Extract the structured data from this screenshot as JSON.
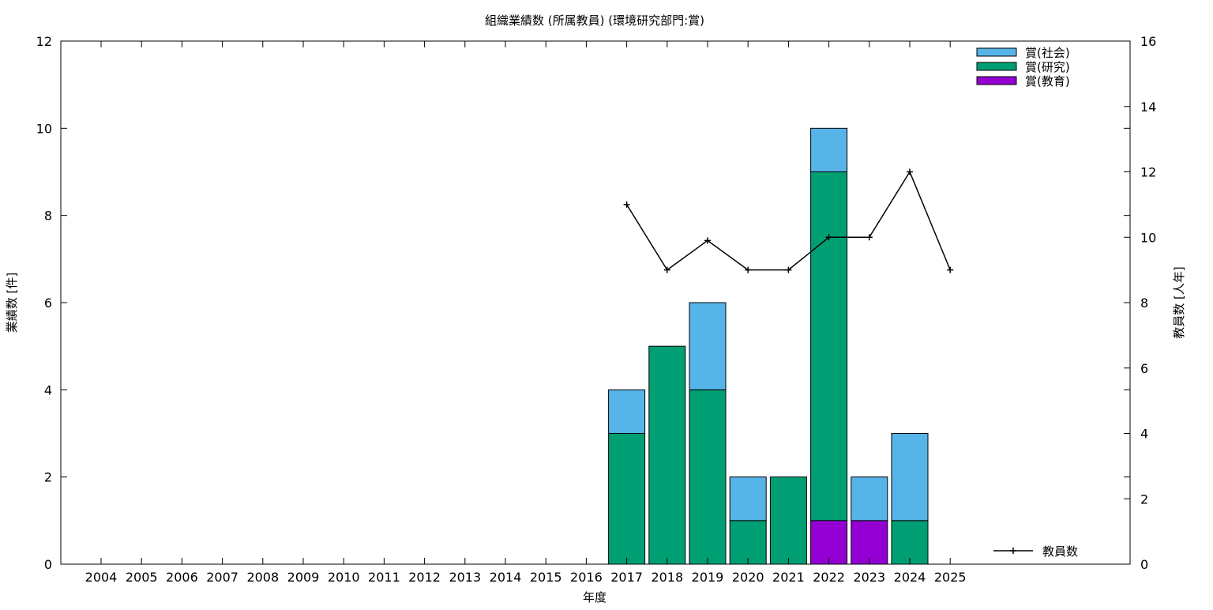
{
  "chart_data": {
    "type": "bar",
    "title": "組織業績数 (所属教員) (環境研究部門:賞)",
    "xlabel": "年度",
    "ylabel": "業績数 [件]",
    "y2label": "教員数 [人年]",
    "categories": [
      "2004",
      "2005",
      "2006",
      "2007",
      "2008",
      "2009",
      "2010",
      "2011",
      "2012",
      "2013",
      "2014",
      "2015",
      "2016",
      "2017",
      "2018",
      "2019",
      "2020",
      "2021",
      "2022",
      "2023",
      "2024",
      "2025"
    ],
    "ylim": [
      0,
      12
    ],
    "yticks": [
      0,
      2,
      4,
      6,
      8,
      10,
      12
    ],
    "y2lim": [
      0,
      16
    ],
    "y2ticks": [
      0,
      2,
      4,
      6,
      8,
      10,
      12,
      14,
      16
    ],
    "stacked": true,
    "series": [
      {
        "name": "賞(教育)",
        "color": "#9400d3",
        "values": [
          0,
          0,
          0,
          0,
          0,
          0,
          0,
          0,
          0,
          0,
          0,
          0,
          0,
          0,
          0,
          0,
          0,
          0,
          1,
          1,
          0,
          0
        ]
      },
      {
        "name": "賞(研究)",
        "color": "#009e73",
        "values": [
          0,
          0,
          0,
          0,
          0,
          0,
          0,
          0,
          0,
          0,
          0,
          0,
          0,
          3,
          5,
          4,
          1,
          2,
          8,
          0,
          1,
          0
        ]
      },
      {
        "name": "賞(社会)",
        "color": "#56b4e9",
        "values": [
          0,
          0,
          0,
          0,
          0,
          0,
          0,
          0,
          0,
          0,
          0,
          0,
          0,
          1,
          0,
          2,
          1,
          0,
          1,
          1,
          2,
          0
        ]
      }
    ],
    "legend_order": [
      "賞(社会)",
      "賞(研究)",
      "賞(教育)"
    ],
    "line_series": {
      "name": "教員数",
      "axis": "y2",
      "color": "#000000",
      "x": [
        "2017",
        "2018",
        "2019",
        "2020",
        "2021",
        "2022",
        "2023",
        "2024",
        "2025"
      ],
      "values": [
        11,
        9,
        9.9,
        9,
        9,
        10,
        10,
        12,
        9
      ]
    },
    "legend": "top-right",
    "grid": false
  }
}
